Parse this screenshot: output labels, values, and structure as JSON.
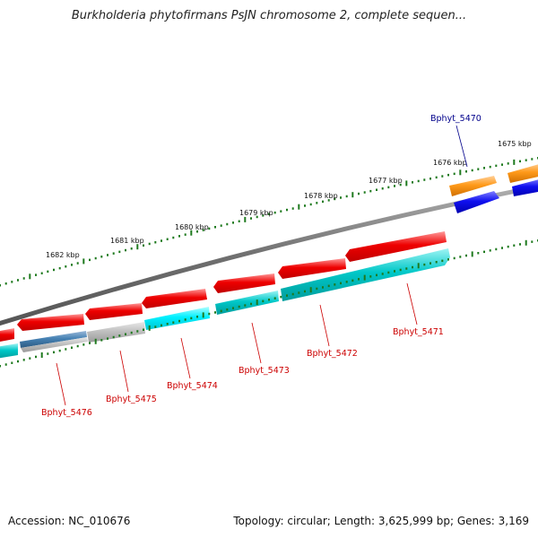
{
  "title": "Burkholderia phytofirmans PsJN chromosome 2, complete sequen...",
  "footer": {
    "accession": "Accession: NC_010676",
    "summary": "Topology: circular; Length: 3,625,999 bp; Genes: 3,169"
  },
  "colors": {
    "backbone": "#777777",
    "tick": "#1e7a1e",
    "forward_label": "#00008b",
    "reverse_label": "#cc0000",
    "gene_red": "#ee0000",
    "gene_cyan": "#00c8c8",
    "gene_orange": "#ff8c00",
    "gene_blue": "#0000ee",
    "gene_grey": "#b0b0b0",
    "gene_steelblue": "#4682b4"
  },
  "kbp_labels": [
    "1675 kbp",
    "1676 kbp",
    "1677 kbp",
    "1678 kbp",
    "1679 kbp",
    "1680 kbp",
    "1681 kbp",
    "1682 kbp"
  ],
  "gene_labels": [
    {
      "text": "Bphyt_5470",
      "strand": "forward"
    },
    {
      "text": "Bphyt_5471",
      "strand": "reverse"
    },
    {
      "text": "Bphyt_5472",
      "strand": "reverse"
    },
    {
      "text": "Bphyt_5473",
      "strand": "reverse"
    },
    {
      "text": "Bphyt_5474",
      "strand": "reverse"
    },
    {
      "text": "Bphyt_5475",
      "strand": "reverse"
    },
    {
      "text": "Bphyt_5476",
      "strand": "reverse"
    }
  ]
}
